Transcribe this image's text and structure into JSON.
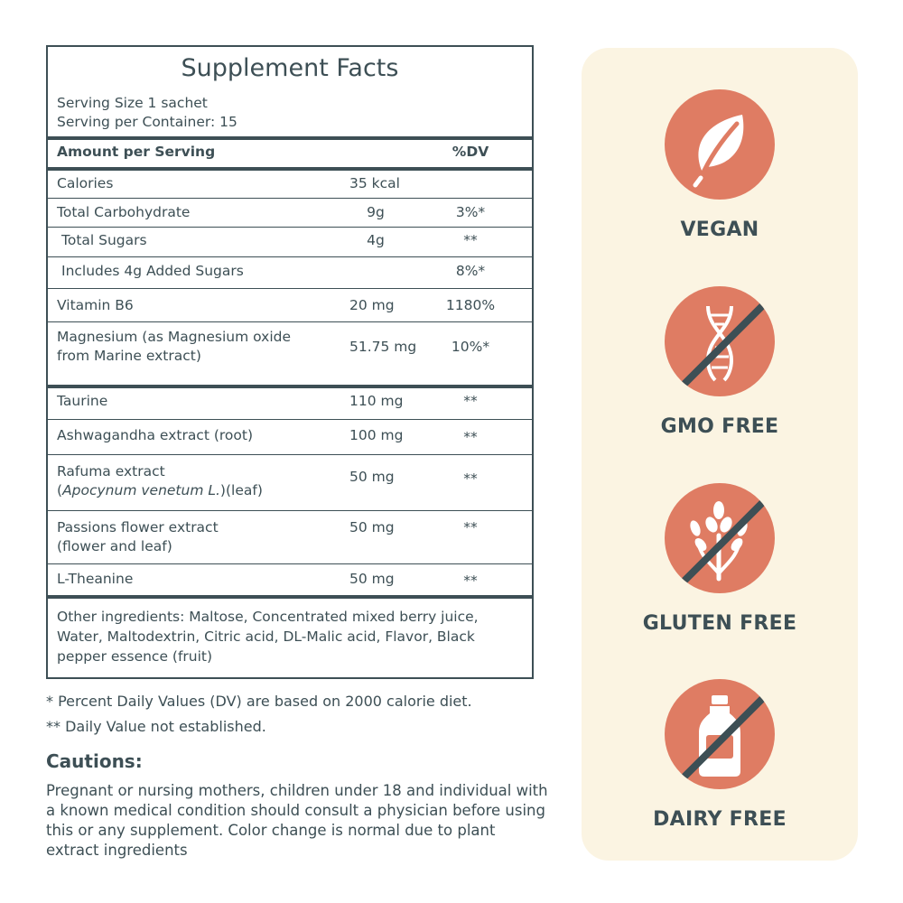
{
  "facts": {
    "title": "Supplement Facts",
    "serving_size": "Serving Size 1 sachet",
    "servings_per_container": "Serving per Container: 15",
    "header": {
      "amount": "Amount per Serving",
      "dv": "%DV"
    },
    "rows": [
      {
        "name": "Calories",
        "amount": "35 kcal",
        "dv": ""
      },
      {
        "name": "Total Carbohydrate",
        "amount": "9g",
        "dv": "3%*"
      },
      {
        "name": "Total Sugars",
        "amount": "4g",
        "dv": "**"
      },
      {
        "name": "Includes 4g Added Sugars",
        "amount": "",
        "dv": "8%*"
      },
      {
        "name": "Vitamin B6",
        "amount": "20 mg",
        "dv": "1180%"
      },
      {
        "name_line1": "Magnesium (as Magnesium oxide",
        "name_line2": "from Marine extract)",
        "amount": "51.75 mg",
        "dv": "10%*"
      },
      {
        "name": "Taurine",
        "amount": "110 mg",
        "dv": "**"
      },
      {
        "name": "Ashwagandha extract (root)",
        "amount": "100 mg",
        "dv": "**"
      },
      {
        "name_line1": "Rafuma extract",
        "name_line2_italic": "Apocynum venetum L.",
        "name_line2_rest": ")(leaf)",
        "amount": "50 mg",
        "dv": "**"
      },
      {
        "name_line1": "Passions flower extract",
        "name_line2": "(flower and leaf)",
        "amount": "50 mg",
        "dv": "**"
      },
      {
        "name": "L-Theanine",
        "amount": "50 mg",
        "dv": "**"
      }
    ],
    "other_ingredients": "Other ingredients: Maltose, Concentrated mixed berry juice, Water, Maltodextrin, Citric acid, DL-Malic acid, Flavor, Black pepper essence (fruit)"
  },
  "notes": {
    "dv_note": "* Percent Daily Values (DV) are based on 2000 calorie diet.",
    "not_established": "** Daily Value not established."
  },
  "cautions": {
    "heading": "Cautions:",
    "text": "Pregnant or nursing mothers, children under 18 and individual with a known medical condition should consult a physician before using this or any supplement. Color change is normal due to plant extract ingredients"
  },
  "badges": [
    {
      "label": "VEGAN",
      "icon": "leaf-icon"
    },
    {
      "label": "GMO FREE",
      "icon": "dna-crossed-icon"
    },
    {
      "label": "GLUTEN FREE",
      "icon": "wheat-crossed-icon"
    },
    {
      "label": "DAIRY FREE",
      "icon": "milk-bottle-crossed-icon"
    }
  ],
  "colors": {
    "text": "#3d4f55",
    "badge_circle": "#df7c63",
    "panel": "#fbf4e2"
  }
}
